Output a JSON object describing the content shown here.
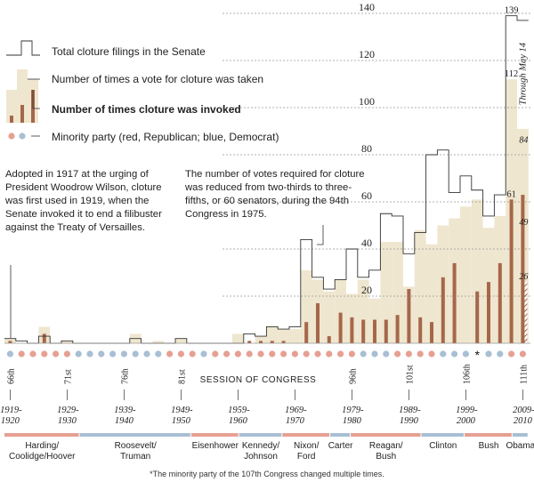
{
  "chart_data": {
    "type": "bar",
    "title": "",
    "xlabel": "SESSION OF CONGRESS",
    "ylabel": "",
    "ylim": [
      0,
      140
    ],
    "yticks": [
      20,
      40,
      60,
      80,
      100,
      120,
      140
    ],
    "legend": {
      "placement": "top-left",
      "filings": "Total cloture filings in the Senate",
      "votes": "Number of times a vote for cloture was taken",
      "invoked": "Number of times cloture was invoked",
      "minority": "Minority party (red, Republican; blue, Democrat)"
    },
    "congresses": [
      66,
      67,
      68,
      69,
      70,
      71,
      72,
      73,
      74,
      75,
      76,
      77,
      78,
      79,
      80,
      81,
      82,
      83,
      84,
      85,
      86,
      87,
      88,
      89,
      90,
      91,
      92,
      93,
      94,
      95,
      96,
      97,
      98,
      99,
      100,
      101,
      102,
      103,
      104,
      105,
      106,
      107,
      108,
      109,
      110,
      111
    ],
    "series": [
      {
        "name": "Total cloture filings in the Senate",
        "values": [
          2,
          1,
          0,
          3,
          0,
          1,
          0,
          0,
          0,
          0,
          0,
          2,
          0,
          0,
          0,
          2,
          0,
          0,
          0,
          0,
          0,
          4,
          3,
          7,
          6,
          7,
          44,
          28,
          23,
          27,
          40,
          28,
          31,
          55,
          54,
          38,
          47,
          80,
          82,
          64,
          71,
          65,
          54,
          63,
          139,
          137
        ]
      },
      {
        "name": "Number of times a vote for cloture was taken",
        "values": [
          2,
          0,
          0,
          7,
          0,
          1,
          0,
          0,
          0,
          0,
          0,
          4,
          0,
          1,
          0,
          2,
          0,
          0,
          0,
          0,
          4,
          0,
          3,
          7,
          6,
          6,
          31,
          27,
          22,
          27,
          21,
          27,
          19,
          43,
          43,
          24,
          48,
          42,
          50,
          53,
          58,
          61,
          49,
          54,
          112,
          91
        ]
      },
      {
        "name": "Number of times cloture was invoked",
        "values": [
          1,
          0,
          0,
          4,
          0,
          0,
          0,
          0,
          0,
          0,
          0,
          0,
          0,
          0,
          0,
          0,
          0,
          0,
          0,
          0,
          0,
          1,
          1,
          1,
          1,
          0,
          9,
          17,
          3,
          13,
          11,
          10,
          10,
          10,
          12,
          23,
          11,
          9,
          28,
          34,
          0,
          22,
          26,
          34,
          61,
          63
        ]
      },
      {
        "name": "Through May 14",
        "values": [
          0,
          0,
          0,
          0,
          0,
          0,
          0,
          0,
          0,
          0,
          0,
          0,
          0,
          0,
          0,
          0,
          0,
          0,
          0,
          0,
          0,
          0,
          0,
          0,
          0,
          0,
          0,
          0,
          0,
          0,
          0,
          0,
          0,
          0,
          0,
          0,
          0,
          0,
          0,
          0,
          0,
          0,
          0,
          0,
          0,
          84
        ]
      },
      {
        "name": "Through May 14",
        "values": [
          0,
          0,
          0,
          0,
          0,
          0,
          0,
          0,
          0,
          0,
          0,
          0,
          0,
          0,
          0,
          0,
          0,
          0,
          0,
          0,
          0,
          0,
          0,
          0,
          0,
          0,
          0,
          0,
          0,
          0,
          0,
          0,
          0,
          0,
          0,
          0,
          0,
          0,
          0,
          0,
          0,
          0,
          0,
          0,
          0,
          49
        ]
      },
      {
        "name": "Through May 14",
        "values": [
          0,
          0,
          0,
          0,
          0,
          0,
          0,
          0,
          0,
          0,
          0,
          0,
          0,
          0,
          0,
          0,
          0,
          0,
          0,
          0,
          0,
          0,
          0,
          0,
          0,
          0,
          0,
          0,
          0,
          0,
          0,
          0,
          0,
          0,
          0,
          0,
          0,
          0,
          0,
          0,
          0,
          0,
          0,
          0,
          0,
          26
        ]
      }
    ],
    "minority_party": [
      "D",
      "R",
      "R",
      "R",
      "R",
      "R",
      "D",
      "D",
      "D",
      "D",
      "D",
      "D",
      "D",
      "D",
      "R",
      "R",
      "R",
      "D",
      "R",
      "R",
      "R",
      "R",
      "R",
      "R",
      "R",
      "R",
      "R",
      "R",
      "R",
      "R",
      "R",
      "D",
      "D",
      "D",
      "R",
      "R",
      "R",
      "R",
      "D",
      "D",
      "D",
      "*",
      "D",
      "D",
      "R",
      "R"
    ],
    "data_labels": [
      {
        "congress": 110,
        "series": 0,
        "text": "139"
      },
      {
        "congress": 110,
        "series": 1,
        "text": "112"
      },
      {
        "congress": 110,
        "series": 2,
        "text": "61"
      },
      {
        "congress": 111,
        "series": 3,
        "text": "84"
      },
      {
        "congress": 111,
        "series": 4,
        "text": "49"
      },
      {
        "congress": 111,
        "series": 5,
        "text": "26"
      }
    ],
    "congress_ticks": [
      {
        "congress": 66,
        "label": "66th",
        "years": "1919-\n1920"
      },
      {
        "congress": 71,
        "label": "71st",
        "years": "1929-\n1930"
      },
      {
        "congress": 76,
        "label": "76th",
        "years": "1939-\n1940"
      },
      {
        "congress": 81,
        "label": "81st",
        "years": "1949-\n1950"
      },
      {
        "congress": 86,
        "label": "",
        "years": "1959-\n1960"
      },
      {
        "congress": 91,
        "label": "",
        "years": "1969-\n1970"
      },
      {
        "congress": 96,
        "label": "96th",
        "years": "1979-\n1980"
      },
      {
        "congress": 101,
        "label": "101st",
        "years": "1989-\n1990"
      },
      {
        "congress": 106,
        "label": "106th",
        "years": "1999-\n2000"
      },
      {
        "congress": 111,
        "label": "111th",
        "years": "2009-\n2010"
      }
    ],
    "presidents": [
      {
        "name": "Harding/\nCoolidge/Hoover",
        "party": "R",
        "from": 66,
        "to": 72.6
      },
      {
        "name": "Roosevelt/\nTruman",
        "party": "D",
        "from": 72.6,
        "to": 82.4
      },
      {
        "name": "Eisenhower",
        "party": "R",
        "from": 82.4,
        "to": 86.6
      },
      {
        "name": "Kennedy/\nJohnson",
        "party": "D",
        "from": 86.6,
        "to": 90.4
      },
      {
        "name": "Nixon/\nFord",
        "party": "R",
        "from": 90.4,
        "to": 94.6
      },
      {
        "name": "Carter",
        "party": "D",
        "from": 94.6,
        "to": 96.4
      },
      {
        "name": "Reagan/\nBush",
        "party": "R",
        "from": 96.4,
        "to": 102.6
      },
      {
        "name": "Clinton",
        "party": "D",
        "from": 102.6,
        "to": 106.4
      },
      {
        "name": "Bush",
        "party": "R",
        "from": 106.4,
        "to": 110.6
      },
      {
        "name": "Obama",
        "party": "D",
        "from": 110.6,
        "to": 112
      }
    ],
    "annotations": {
      "through": "Through May 14",
      "note_1917": "Adopted in 1917 at the urging of President Woodrow Wilson, cloture was first used in 1919, when the Senate invoked it to end a filibuster against the Treaty of Versailles.",
      "note_1975": "The number of votes required for cloture was reduced from two-thirds to three-fifths, or 60 senators, during the 94th Congress in 1975.",
      "asterisk": "*",
      "footnote": "*The minority party of the 107th Congress changed multiple times."
    },
    "colors": {
      "votes_fill": "#efe6cf",
      "invoked": "#a5674a",
      "filings_line": "#333333",
      "republican": "#e6a092",
      "democrat": "#a8bfd4",
      "gridline": "#999999"
    }
  }
}
